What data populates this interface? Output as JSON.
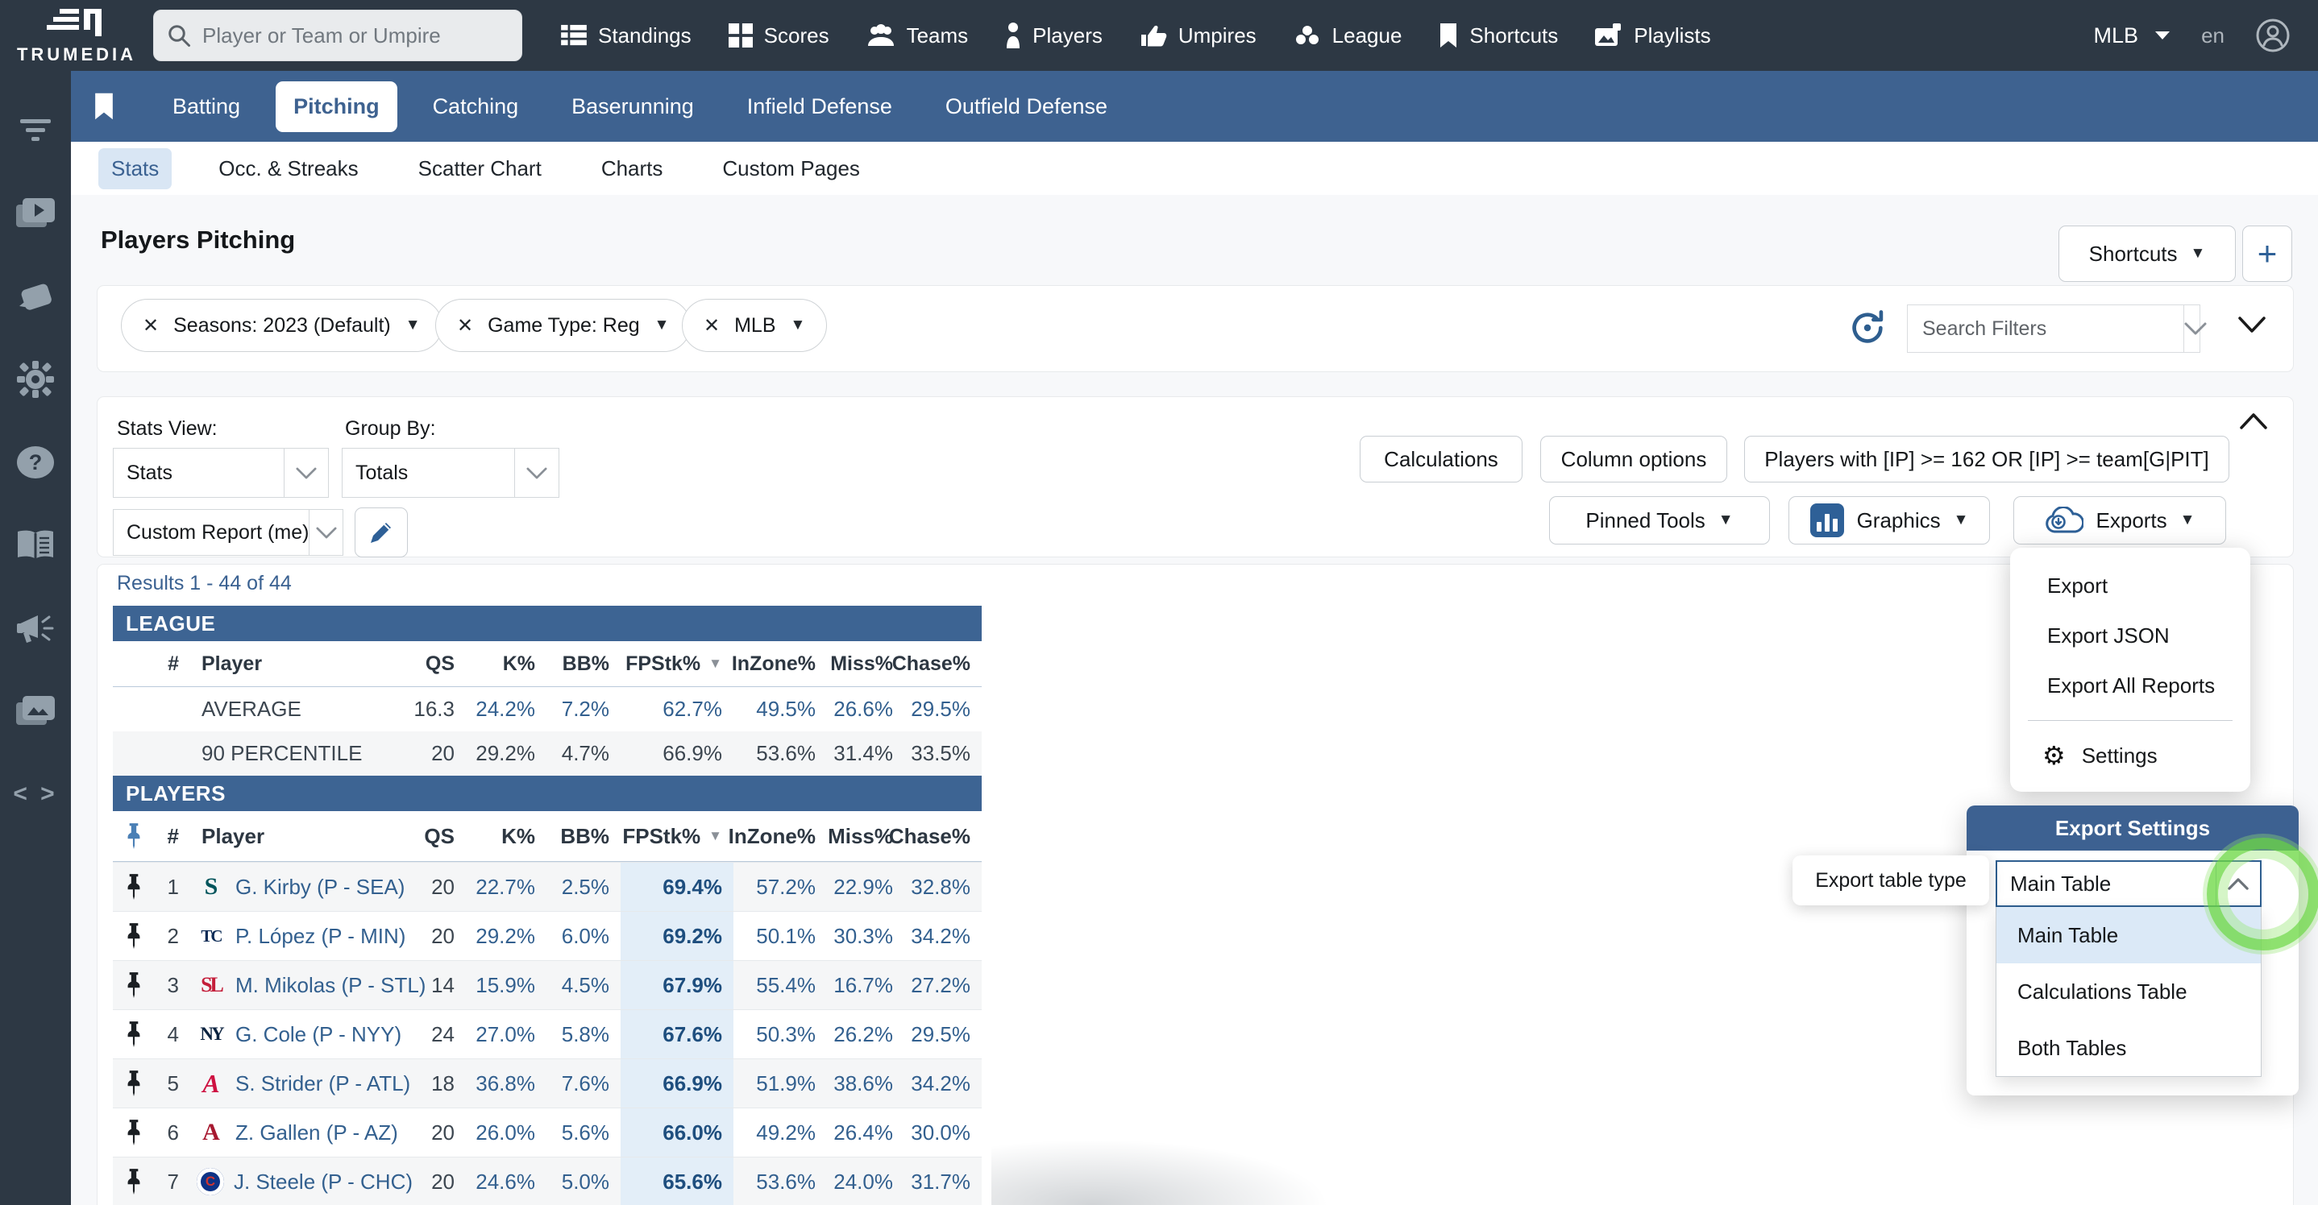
{
  "brand": {
    "name": "TRUMEDIA"
  },
  "topbar": {
    "search_placeholder": "Player or Team or Umpire",
    "nav": [
      {
        "label": "Standings"
      },
      {
        "label": "Scores"
      },
      {
        "label": "Teams"
      },
      {
        "label": "Players"
      },
      {
        "label": "Umpires"
      },
      {
        "label": "League"
      },
      {
        "label": "Shortcuts"
      },
      {
        "label": "Playlists"
      }
    ],
    "league_selector": "MLB",
    "language": "en"
  },
  "primary_tabs": [
    {
      "label": "Batting"
    },
    {
      "label": "Pitching",
      "active": true
    },
    {
      "label": "Catching"
    },
    {
      "label": "Baserunning"
    },
    {
      "label": "Infield Defense"
    },
    {
      "label": "Outfield Defense"
    }
  ],
  "sub_tabs": [
    {
      "label": "Stats",
      "active": true
    },
    {
      "label": "Occ. & Streaks"
    },
    {
      "label": "Scatter Chart"
    },
    {
      "label": "Charts"
    },
    {
      "label": "Custom Pages"
    }
  ],
  "page": {
    "title": "Players Pitching",
    "shortcuts_label": "Shortcuts"
  },
  "filters": {
    "chips": [
      {
        "label": "Seasons: 2023 (Default)"
      },
      {
        "label": "Game Type: Reg"
      },
      {
        "label": "MLB"
      }
    ],
    "search_placeholder": "Search Filters"
  },
  "controls": {
    "stats_view_label": "Stats View:",
    "stats_view_value": "Stats",
    "group_by_label": "Group By:",
    "group_by_value": "Totals",
    "report_value": "Custom Report (me)",
    "calculations_label": "Calculations",
    "column_options_label": "Column options",
    "players_filter_label": "Players with [IP] >= 162 OR [IP] >= team[G|PIT]",
    "pinned_tools_label": "Pinned Tools",
    "graphics_label": "Graphics",
    "exports_label": "Exports"
  },
  "export_menu": {
    "items": [
      {
        "label": "Export"
      },
      {
        "label": "Export JSON"
      },
      {
        "label": "Export All Reports"
      }
    ],
    "settings_label": "Settings"
  },
  "export_settings": {
    "title": "Export Settings",
    "tooltip": "Export table type",
    "select_value": "Main Table",
    "options": [
      {
        "label": "Main Table",
        "selected": true
      },
      {
        "label": "Calculations Table"
      },
      {
        "label": "Both Tables"
      }
    ]
  },
  "results": {
    "summary": "Results 1 - 44 of 44",
    "columns": {
      "num": "#",
      "player": "Player",
      "qs": "QS",
      "k": "K%",
      "bb": "BB%",
      "fpstk": "FPStk%",
      "inzone": "InZone%",
      "miss": "Miss%",
      "chase": "Chase%"
    },
    "sorted_column": "FPStk%",
    "league": {
      "header": "LEAGUE",
      "rows": [
        {
          "label": "AVERAGE",
          "qs": "16.3",
          "k": "24.2%",
          "bb": "7.2%",
          "fpstk": "62.7%",
          "inzone": "49.5%",
          "miss": "26.6%",
          "chase": "29.5%"
        },
        {
          "label": "90 PERCENTILE",
          "qs": "20",
          "k": "29.2%",
          "bb": "4.7%",
          "fpstk": "66.9%",
          "inzone": "53.6%",
          "miss": "31.4%",
          "chase": "33.5%"
        }
      ]
    },
    "players": {
      "header": "PLAYERS",
      "rows": [
        {
          "num": "1",
          "team": "SEA",
          "logo": "S",
          "name": "G. Kirby (P - SEA)",
          "qs": "20",
          "k": "22.7%",
          "bb": "2.5%",
          "fpstk": "69.4%",
          "inzone": "57.2%",
          "miss": "22.9%",
          "chase": "32.8%"
        },
        {
          "num": "2",
          "team": "MIN",
          "logo": "TC",
          "name": "P. López (P - MIN)",
          "qs": "20",
          "k": "29.2%",
          "bb": "6.0%",
          "fpstk": "69.2%",
          "inzone": "50.1%",
          "miss": "30.3%",
          "chase": "34.2%"
        },
        {
          "num": "3",
          "team": "STL",
          "logo": "SL",
          "name": "M. Mikolas (P - STL)",
          "qs": "14",
          "k": "15.9%",
          "bb": "4.5%",
          "fpstk": "67.9%",
          "inzone": "55.4%",
          "miss": "16.7%",
          "chase": "27.2%"
        },
        {
          "num": "4",
          "team": "NYY",
          "logo": "NY",
          "name": "G. Cole (P - NYY)",
          "qs": "24",
          "k": "27.0%",
          "bb": "5.8%",
          "fpstk": "67.6%",
          "inzone": "50.3%",
          "miss": "26.2%",
          "chase": "29.5%"
        },
        {
          "num": "5",
          "team": "ATL",
          "logo": "A",
          "name": "S. Strider (P - ATL)",
          "qs": "18",
          "k": "36.8%",
          "bb": "7.6%",
          "fpstk": "66.9%",
          "inzone": "51.9%",
          "miss": "38.6%",
          "chase": "34.2%"
        },
        {
          "num": "6",
          "team": "AZ",
          "logo": "A",
          "name": "Z. Gallen (P - AZ)",
          "qs": "20",
          "k": "26.0%",
          "bb": "5.6%",
          "fpstk": "66.0%",
          "inzone": "49.2%",
          "miss": "26.4%",
          "chase": "30.0%"
        },
        {
          "num": "7",
          "team": "CHC",
          "logo": "C",
          "name": "J. Steele (P - CHC)",
          "qs": "20",
          "k": "24.6%",
          "bb": "5.0%",
          "fpstk": "65.6%",
          "inzone": "53.6%",
          "miss": "24.0%",
          "chase": "31.7%"
        }
      ]
    }
  },
  "icons": {
    "close": "✕",
    "caret_down": "▼",
    "plus": "+",
    "gear": "⚙",
    "code": "< >",
    "question": "?"
  },
  "theme": {
    "topbar_bg": "#2d3844",
    "nav_blue": "#3e6290",
    "section_bar_blue": "#3d6493",
    "link_blue": "#33608f",
    "accent_blue": "#2e6097",
    "sorted_col_tint": "#e3eef8",
    "highlight_green": "#6ed946",
    "team_colors": {
      "SEA": "#00555c",
      "MIN": "#0c2b56",
      "STL": "#c41e3a",
      "NYY": "#0c2340",
      "ATL": "#ce1141",
      "AZ": "#a71930",
      "CHC": "#0e3386"
    }
  }
}
